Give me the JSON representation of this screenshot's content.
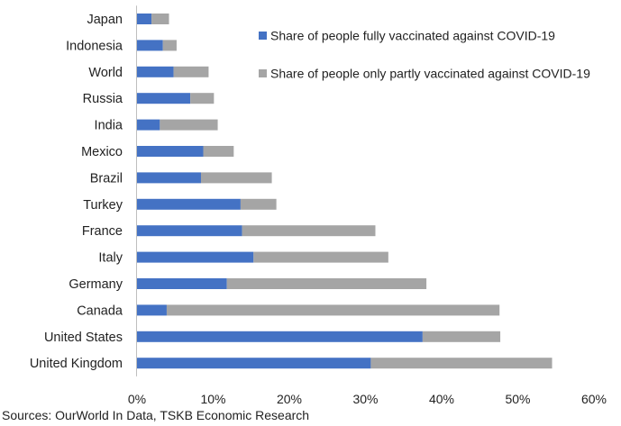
{
  "chart_data": {
    "type": "bar",
    "orientation": "horizontal",
    "stacked": true,
    "categories": [
      "Japan",
      "Indonesia",
      "World",
      "Russia",
      "India",
      "Mexico",
      "Brazil",
      "Turkey",
      "France",
      "Italy",
      "Germany",
      "Canada",
      "United States",
      "United Kingdom"
    ],
    "series": [
      {
        "name": "Share of people fully vaccinated against COVID-19",
        "color": "#4472C4",
        "values": [
          1.9,
          3.4,
          4.8,
          7.0,
          3.0,
          8.7,
          8.4,
          13.6,
          13.8,
          15.3,
          11.8,
          3.9,
          37.5,
          30.7
        ]
      },
      {
        "name": "Share of people only partly vaccinated against COVID-19",
        "color": "#A5A5A5",
        "values": [
          2.3,
          1.8,
          4.6,
          3.1,
          7.6,
          4.0,
          9.3,
          4.7,
          17.5,
          17.7,
          26.2,
          43.7,
          10.2,
          23.8
        ]
      }
    ],
    "xlim": [
      0,
      60
    ],
    "x_ticks": [
      0,
      10,
      20,
      30,
      40,
      50,
      60
    ],
    "x_tick_labels": [
      "0%",
      "10%",
      "20%",
      "30%",
      "40%",
      "50%",
      "60%"
    ],
    "grid": false,
    "legend_position": "top-right"
  },
  "source_note": "Sources: OurWorld In Data, TSKB Economic Research"
}
